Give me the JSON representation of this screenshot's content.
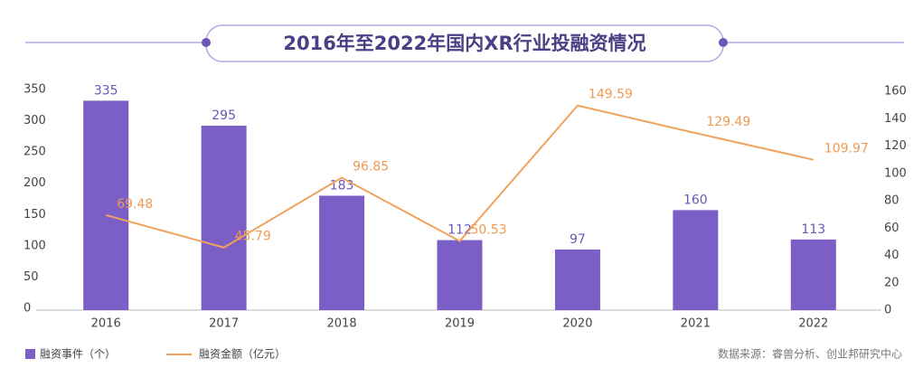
{
  "chart_data": {
    "type": "bar",
    "title": "2016年至2022年国内XR行业投融资情况",
    "categories": [
      "2016",
      "2017",
      "2018",
      "2019",
      "2020",
      "2021",
      "2022"
    ],
    "series": [
      {
        "name": "融资事件（个）",
        "type": "bar",
        "color": "#7b5ec6",
        "values": [
          335,
          295,
          183,
          112,
          97,
          160,
          113
        ]
      },
      {
        "name": "融资金额（亿元）",
        "type": "line",
        "axis": "y2",
        "color": "#f0a35e",
        "values": [
          69.48,
          45.79,
          96.85,
          50.53,
          149.59,
          129.49,
          109.97
        ]
      }
    ],
    "ylim": [
      0,
      350
    ],
    "yticks": [
      0,
      50,
      100,
      150,
      200,
      250,
      300,
      350
    ],
    "y2lim": [
      0,
      160
    ],
    "y2ticks": [
      0,
      20,
      40,
      60,
      80,
      100,
      120,
      140,
      160
    ],
    "source": "数据来源：睿兽分析、创业邦研究中心"
  }
}
